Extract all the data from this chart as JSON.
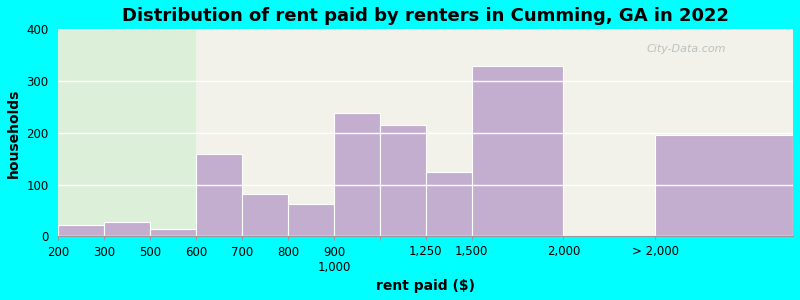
{
  "title": "Distribution of rent paid by renters in Cumming, GA in 2022",
  "xlabel": "rent paid ($)",
  "ylabel": "households",
  "bar_color": "#c4aed0",
  "background_color": "#00ffff",
  "plot_bg_left": "#dcefd8",
  "plot_bg_right": "#f2f2ea",
  "categories": [
    "200",
    "300",
    "500",
    "600",
    "700",
    "800",
    "900",
    "1,000",
    "1,250",
    "1,500",
    "2,000",
    "> 2,000"
  ],
  "values": [
    22,
    27,
    15,
    160,
    82,
    62,
    238,
    215,
    125,
    330,
    0,
    195
  ],
  "ylim": [
    0,
    400
  ],
  "yticks": [
    0,
    100,
    200,
    300,
    400
  ],
  "title_fontsize": 13,
  "axis_label_fontsize": 10,
  "tick_fontsize": 8.5,
  "watermark_text": "City-Data.com",
  "bar_lefts": [
    0,
    1,
    2,
    3,
    4,
    5,
    6,
    7,
    8,
    9,
    11,
    13
  ],
  "bar_widths": [
    1,
    1,
    1,
    1,
    1,
    1,
    1,
    1,
    1,
    2,
    2,
    3
  ],
  "tick_labels": [
    "200",
    "300",
    "500",
    "600",
    "700",
    "800",
    "900\n1,000",
    "1,000",
    "1,250",
    "1,500",
    "2,000",
    "> 2,000"
  ],
  "green_split": 3,
  "xlim": [
    0,
    16
  ]
}
